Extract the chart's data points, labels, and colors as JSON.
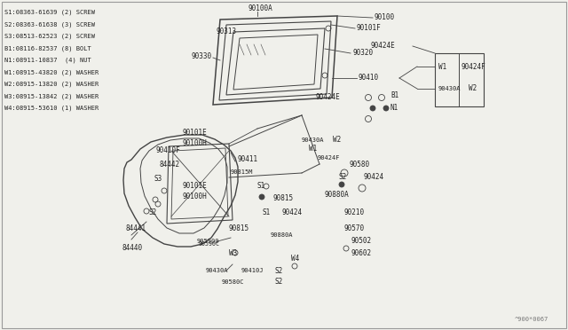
{
  "bg_color": "#f0f0eb",
  "line_color": "#444444",
  "text_color": "#222222",
  "legend_lines": [
    "S1:08363-61639 (2) SCREW",
    "S2:08363-61638 (3 SCREW",
    "S3:08513-62523 (2) SCREW",
    "B1:08116-82537 (8) BOLT",
    "N1:08911-10837  (4) NUT",
    "W1:08915-43820 (2) WASHER",
    "W2:08915-13820 (2) WASHER",
    "W3:08915-13842 (2) WASHER",
    "W4:08915-53610 (1) WASHER"
  ],
  "watermark": "^900*0067"
}
